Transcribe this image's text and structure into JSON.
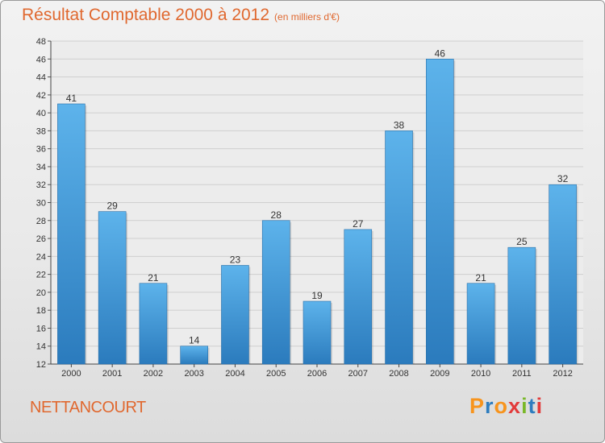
{
  "title": "Résultat Comptable 2000 à 2012",
  "subtitle": "(en milliers d'€)",
  "place": "NETTANCOURT",
  "logo": {
    "letters": [
      "P",
      "r",
      "o",
      "x",
      "i",
      "t",
      "i"
    ],
    "colors": [
      "#f7941d",
      "#2e7dbf",
      "#f7941d",
      "#e23b3b",
      "#79b829",
      "#2e7dbf",
      "#e23b3b"
    ]
  },
  "colors": {
    "bar_top": "#5db3eb",
    "bar_bottom": "#2b7bbd",
    "title": "#e0682f",
    "grid": "#cfcfcf"
  },
  "chart_data": {
    "type": "bar",
    "title": "Résultat Comptable 2000 à 2012",
    "ylabel": "en milliers d'€",
    "categories": [
      "2000",
      "2001",
      "2002",
      "2003",
      "2004",
      "2005",
      "2006",
      "2007",
      "2008",
      "2009",
      "2010",
      "2011",
      "2012"
    ],
    "values": [
      41,
      29,
      21,
      14,
      23,
      28,
      19,
      27,
      38,
      46,
      21,
      25,
      32
    ],
    "ylim": [
      12,
      48
    ],
    "yticks": [
      12,
      14,
      16,
      18,
      20,
      22,
      24,
      26,
      28,
      30,
      32,
      34,
      36,
      38,
      40,
      42,
      44,
      46,
      48
    ],
    "grid": true
  }
}
